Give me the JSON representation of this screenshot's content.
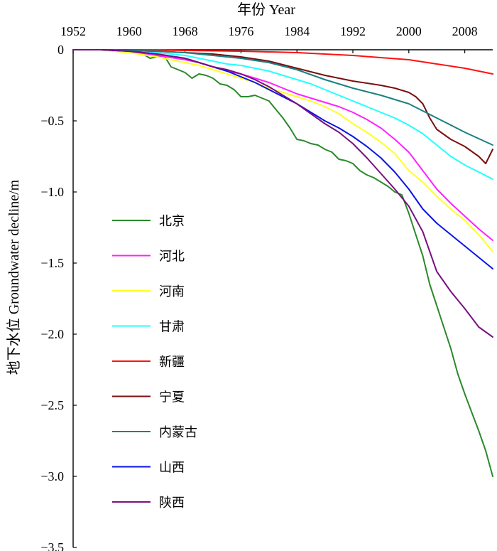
{
  "chart_data": {
    "type": "line",
    "title": "",
    "xlabel": "年份 Year",
    "ylabel": "地下水位 Groundwater decline/m",
    "x_axis_position": "top",
    "xlim": [
      1952,
      2012
    ],
    "ylim": [
      -3.5,
      0
    ],
    "x_ticks": [
      1952,
      1960,
      1968,
      1976,
      1984,
      1992,
      2000,
      2008
    ],
    "x_tick_labels": [
      "1952",
      "1960",
      "1968",
      "1976",
      "1984",
      "1992",
      "2000",
      "2008"
    ],
    "y_ticks": [
      0,
      -0.5,
      -1.0,
      -1.5,
      -2.0,
      -2.5,
      -3.0,
      -3.5
    ],
    "y_tick_labels": [
      "0",
      "−0.5",
      "−1.0",
      "−1.5",
      "−2.0",
      "−2.5",
      "−3.0",
      "−3.5"
    ],
    "grid": false,
    "legend_position": "left-middle",
    "series": [
      {
        "name": "北京",
        "color": "#2a8a2a",
        "x": [
          1952,
          1956,
          1960,
          1962,
          1963,
          1964,
          1965,
          1966,
          1967,
          1968,
          1969,
          1970,
          1971,
          1972,
          1973,
          1974,
          1975,
          1976,
          1977,
          1978,
          1979,
          1980,
          1981,
          1982,
          1983,
          1984,
          1985,
          1986,
          1987,
          1988,
          1989,
          1990,
          1991,
          1992,
          1993,
          1994,
          1995,
          1996,
          1997,
          1998,
          1999,
          2000,
          2001,
          2002,
          2003,
          2004,
          2005,
          2006,
          2007,
          2008,
          2009,
          2010,
          2011,
          2012
        ],
        "y": [
          0,
          0,
          -0.02,
          -0.03,
          -0.06,
          -0.05,
          -0.04,
          -0.12,
          -0.14,
          -0.16,
          -0.2,
          -0.17,
          -0.18,
          -0.2,
          -0.24,
          -0.25,
          -0.28,
          -0.33,
          -0.33,
          -0.32,
          -0.34,
          -0.36,
          -0.42,
          -0.48,
          -0.55,
          -0.63,
          -0.64,
          -0.66,
          -0.67,
          -0.7,
          -0.72,
          -0.77,
          -0.78,
          -0.8,
          -0.85,
          -0.88,
          -0.9,
          -0.93,
          -0.96,
          -1.0,
          -1.02,
          -1.15,
          -1.3,
          -1.45,
          -1.65,
          -1.8,
          -1.95,
          -2.1,
          -2.28,
          -2.42,
          -2.55,
          -2.68,
          -2.82,
          -3.0
        ]
      },
      {
        "name": "河北",
        "color": "#ff22ff",
        "x": [
          1952,
          1956,
          1960,
          1964,
          1968,
          1970,
          1972,
          1974,
          1976,
          1978,
          1980,
          1982,
          1984,
          1986,
          1988,
          1990,
          1992,
          1994,
          1996,
          1998,
          2000,
          2002,
          2004,
          2006,
          2008,
          2010,
          2012
        ],
        "y": [
          0,
          0,
          -0.01,
          -0.04,
          -0.07,
          -0.09,
          -0.12,
          -0.15,
          -0.17,
          -0.2,
          -0.23,
          -0.27,
          -0.31,
          -0.34,
          -0.37,
          -0.4,
          -0.44,
          -0.49,
          -0.55,
          -0.63,
          -0.72,
          -0.85,
          -0.98,
          -1.08,
          -1.17,
          -1.26,
          -1.34
        ]
      },
      {
        "name": "河南",
        "color": "#ffff22",
        "x": [
          1952,
          1956,
          1960,
          1964,
          1968,
          1970,
          1972,
          1974,
          1976,
          1978,
          1980,
          1982,
          1984,
          1986,
          1988,
          1990,
          1992,
          1994,
          1996,
          1998,
          2000,
          2002,
          2004,
          2006,
          2008,
          2010,
          2012
        ],
        "y": [
          0,
          0,
          -0.02,
          -0.05,
          -0.09,
          -0.11,
          -0.14,
          -0.17,
          -0.2,
          -0.23,
          -0.27,
          -0.3,
          -0.33,
          -0.36,
          -0.4,
          -0.45,
          -0.52,
          -0.58,
          -0.65,
          -0.73,
          -0.85,
          -0.93,
          -1.03,
          -1.12,
          -1.2,
          -1.3,
          -1.42
        ]
      },
      {
        "name": "甘肃",
        "color": "#22ffff",
        "x": [
          1952,
          1956,
          1960,
          1964,
          1968,
          1970,
          1972,
          1974,
          1976,
          1978,
          1980,
          1982,
          1984,
          1986,
          1988,
          1990,
          1992,
          1994,
          1996,
          1998,
          2000,
          2002,
          2004,
          2006,
          2008,
          2010,
          2012
        ],
        "y": [
          0,
          0,
          -0.01,
          -0.02,
          -0.04,
          -0.06,
          -0.08,
          -0.1,
          -0.11,
          -0.13,
          -0.15,
          -0.18,
          -0.21,
          -0.24,
          -0.28,
          -0.32,
          -0.36,
          -0.4,
          -0.44,
          -0.48,
          -0.53,
          -0.59,
          -0.67,
          -0.75,
          -0.81,
          -0.86,
          -0.91
        ]
      },
      {
        "name": "新疆",
        "color": "#ff1111",
        "x": [
          1952,
          1960,
          1968,
          1976,
          1984,
          1992,
          2000,
          2004,
          2008,
          2012
        ],
        "y": [
          0,
          0,
          -0.005,
          -0.01,
          -0.02,
          -0.04,
          -0.07,
          -0.1,
          -0.13,
          -0.17
        ]
      },
      {
        "name": "宁夏",
        "color": "#7a1010",
        "x": [
          1952,
          1956,
          1960,
          1964,
          1968,
          1972,
          1976,
          1980,
          1984,
          1988,
          1992,
          1996,
          1998,
          2000,
          2001,
          2002,
          2003,
          2004,
          2006,
          2008,
          2010,
          2011,
          2012
        ],
        "y": [
          0,
          0,
          -0.005,
          -0.01,
          -0.02,
          -0.03,
          -0.05,
          -0.08,
          -0.13,
          -0.18,
          -0.22,
          -0.25,
          -0.27,
          -0.3,
          -0.33,
          -0.38,
          -0.48,
          -0.56,
          -0.63,
          -0.68,
          -0.75,
          -0.8,
          -0.7
        ]
      },
      {
        "name": "内蒙古",
        "color": "#1a8080",
        "x": [
          1952,
          1956,
          1960,
          1964,
          1968,
          1972,
          1976,
          1980,
          1984,
          1988,
          1992,
          1996,
          2000,
          2004,
          2008,
          2012
        ],
        "y": [
          0,
          0,
          -0.005,
          -0.01,
          -0.02,
          -0.04,
          -0.06,
          -0.09,
          -0.14,
          -0.21,
          -0.27,
          -0.32,
          -0.38,
          -0.48,
          -0.58,
          -0.67
        ]
      },
      {
        "name": "山西",
        "color": "#0a14e6",
        "x": [
          1952,
          1956,
          1960,
          1964,
          1968,
          1970,
          1972,
          1974,
          1976,
          1978,
          1980,
          1982,
          1984,
          1986,
          1988,
          1990,
          1992,
          1994,
          1996,
          1998,
          2000,
          2002,
          2004,
          2006,
          2008,
          2010,
          2012
        ],
        "y": [
          0,
          0,
          -0.01,
          -0.03,
          -0.06,
          -0.09,
          -0.12,
          -0.15,
          -0.19,
          -0.23,
          -0.28,
          -0.33,
          -0.38,
          -0.44,
          -0.5,
          -0.55,
          -0.61,
          -0.68,
          -0.76,
          -0.86,
          -0.98,
          -1.12,
          -1.22,
          -1.3,
          -1.38,
          -1.46,
          -1.54
        ]
      },
      {
        "name": "陕西",
        "color": "#7a1080",
        "x": [
          1952,
          1956,
          1960,
          1964,
          1968,
          1970,
          1972,
          1974,
          1976,
          1978,
          1980,
          1982,
          1984,
          1986,
          1988,
          1990,
          1992,
          1994,
          1996,
          1998,
          2000,
          2002,
          2004,
          2006,
          2008,
          2010,
          2012
        ],
        "y": [
          0,
          0,
          -0.01,
          -0.03,
          -0.06,
          -0.09,
          -0.12,
          -0.14,
          -0.17,
          -0.21,
          -0.26,
          -0.32,
          -0.38,
          -0.45,
          -0.52,
          -0.58,
          -0.66,
          -0.76,
          -0.87,
          -0.98,
          -1.1,
          -1.28,
          -1.56,
          -1.7,
          -1.82,
          -1.95,
          -2.02
        ]
      }
    ]
  }
}
